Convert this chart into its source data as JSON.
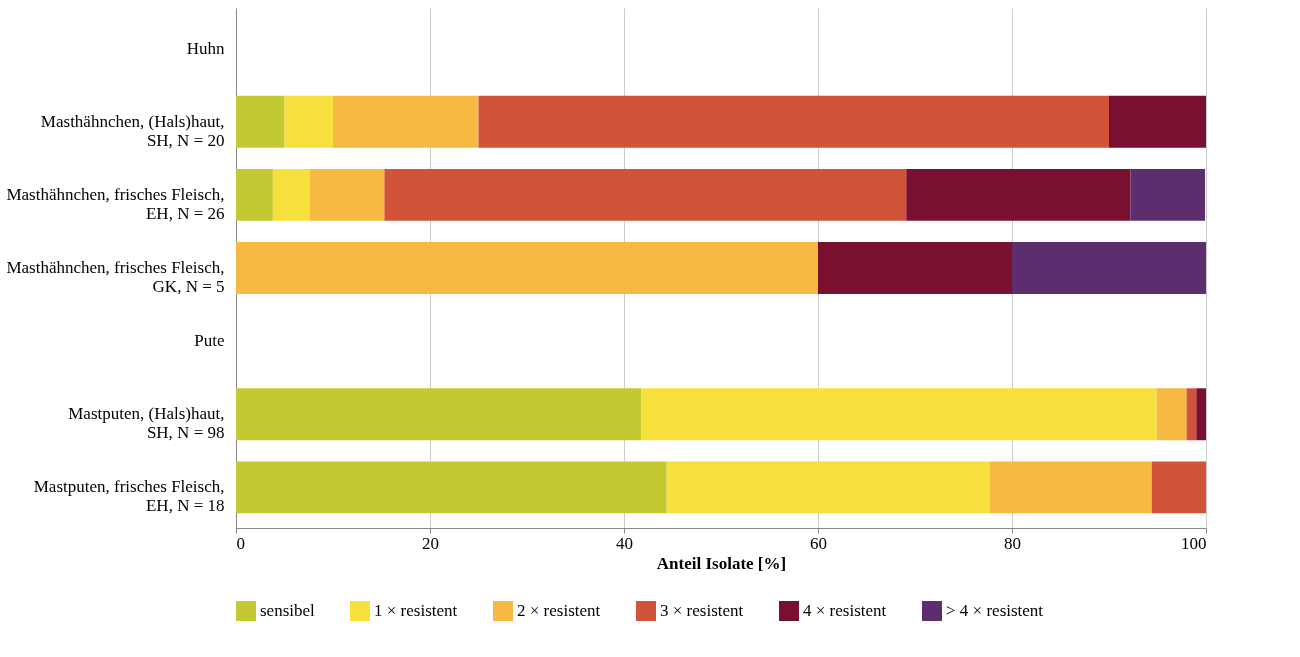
{
  "chart_data": {
    "type": "bar",
    "orientation": "horizontal",
    "stacked": true,
    "categories": [
      "Huhn",
      "Masthähnchen, (Hals)haut, SH, N = 20",
      "Masthähnchen, frisches Fleisch, EH, N = 26",
      "Masthähnchen, frisches Fleisch, GK, N = 5",
      "Pute",
      "Mastputen, (Hals)haut, SH, N = 98",
      "Mastputen, frisches Fleisch, EH, N = 18"
    ],
    "series": [
      {
        "name": "sensibel",
        "color": "#c2c932",
        "values": [
          null,
          5,
          3.8,
          0,
          null,
          41.8,
          44.4
        ]
      },
      {
        "name": "1 × resistent",
        "color": "#f8e03c",
        "values": [
          null,
          5,
          3.8,
          0,
          null,
          53.1,
          33.3
        ]
      },
      {
        "name": "2 × resistent",
        "color": "#f6b941",
        "values": [
          null,
          15,
          7.7,
          60,
          null,
          3.1,
          16.7
        ]
      },
      {
        "name": "3 × resistent",
        "color": "#d0533a",
        "values": [
          null,
          65,
          53.8,
          0,
          null,
          1,
          5.6
        ]
      },
      {
        "name": "4 × resistent",
        "color": "#7a1030",
        "values": [
          null,
          10,
          23.1,
          20,
          null,
          1,
          0
        ]
      },
      {
        "name": "> 4 × resistent",
        "color": "#5e2d6e",
        "values": [
          null,
          0,
          7.7,
          20,
          null,
          0,
          0
        ]
      }
    ],
    "xlabel": "Anteil Isolate [%]",
    "xlim": [
      0,
      100
    ],
    "xticks": [
      0,
      20,
      40,
      60,
      80,
      100
    ],
    "grid": "x",
    "legend": "bottom"
  }
}
